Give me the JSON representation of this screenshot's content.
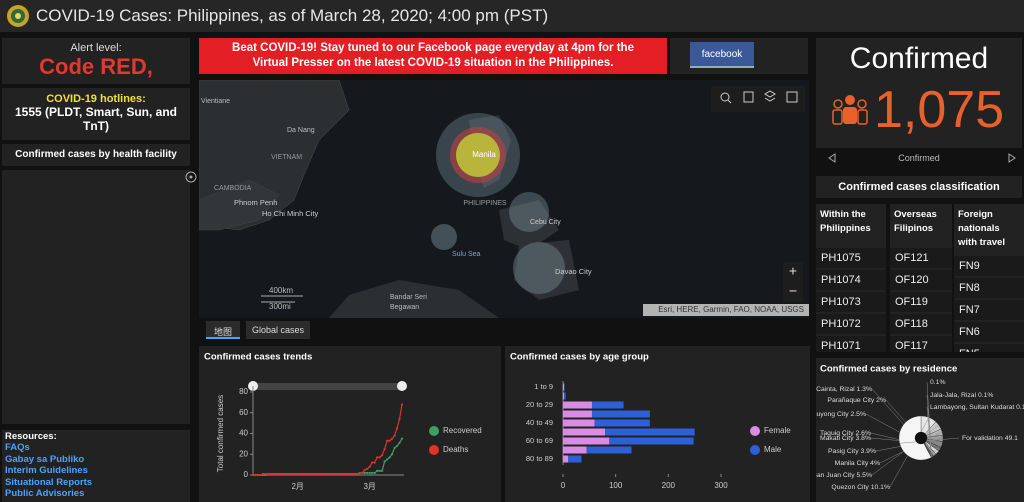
{
  "header": {
    "title": "COVID-19 Cases: Philippines, as of March 28, 2020; 4:00 pm (PST)"
  },
  "left": {
    "alert_label": "Alert level:",
    "alert_level": "Code RED,",
    "hotlines_title": "COVID-19 hotlines:",
    "hotlines": "1555 (PLDT, Smart, Sun, and TnT)",
    "facility_title": "Confirmed cases by health facility",
    "resources_title": "Resources:",
    "resources": [
      "FAQs",
      "Gabay sa Publiko",
      "Interim Guidelines",
      "Situational Reports",
      "Public Advisories"
    ]
  },
  "banner": {
    "text": "Beat COVID-19! Stay tuned to our Facebook page everyday at 4pm for the Virtual Presser on the latest COVID-19 situation in the Philippines.",
    "button": "facebook"
  },
  "map": {
    "labels": [
      "Vientiane",
      "Da Nang",
      "VIETNAM",
      "CAMBODIA",
      "Phnom Penh",
      "Ho Chi Minh City",
      "Manila",
      "PHILIPPINES",
      "Cebu City",
      "Sulu Sea",
      "Davao City",
      "Bandar Seri",
      "Begawan"
    ],
    "scale_km": "400km",
    "scale_mi": "300mi",
    "attribution": "Esri, HERE, Garmin, FAO, NOAA, USGS",
    "zoom_in": "+",
    "zoom_out": "−",
    "tabs": [
      "地图",
      "Global cases"
    ]
  },
  "confirmed": {
    "title": "Confirmed",
    "count": "1,075",
    "caption": "Confirmed"
  },
  "classification": {
    "title": "Confirmed cases classification",
    "columns": [
      {
        "heading": "Within the Philippines",
        "items": [
          "PH1075",
          "PH1074",
          "PH1073",
          "PH1072",
          "PH1071"
        ]
      },
      {
        "heading": "Overseas Filipinos",
        "items": [
          "OF121",
          "OF120",
          "OF119",
          "OF118",
          "OF117"
        ]
      },
      {
        "heading": "Foreign nationals with travel",
        "items": [
          "FN9",
          "FN8",
          "FN7",
          "FN6",
          "FN5"
        ]
      }
    ]
  },
  "chart_data": [
    {
      "type": "line",
      "title": "Confirmed cases trends",
      "y_label": "Total confirmed cases",
      "categories": [
        null,
        null,
        null,
        null,
        null,
        null,
        null,
        null,
        null,
        null,
        null,
        null,
        null,
        null,
        null,
        null,
        null,
        null,
        "2月",
        null,
        null,
        null,
        null,
        null,
        null,
        null,
        null,
        null,
        null,
        null,
        null,
        null,
        null,
        null,
        null,
        null,
        null,
        null,
        null,
        null,
        null,
        null,
        null,
        null,
        null,
        null,
        null,
        "3月",
        null,
        null,
        null,
        null,
        null,
        null,
        null,
        null,
        null,
        null,
        null,
        null,
        null
      ],
      "series": [
        {
          "name": "Recovered",
          "color": "#3f9e62",
          "values": [
            0,
            0,
            0,
            0,
            0,
            0,
            1,
            1,
            1,
            1,
            1,
            1,
            1,
            1,
            1,
            1,
            1,
            1,
            1,
            1,
            1,
            1,
            1,
            1,
            1,
            1,
            1,
            1,
            1,
            1,
            1,
            1,
            1,
            1,
            1,
            1,
            1,
            1,
            1,
            1,
            1,
            1,
            1,
            2,
            2,
            2,
            2,
            2,
            2,
            2,
            4,
            4,
            4,
            13,
            15,
            17,
            20,
            26,
            28,
            31,
            35
          ]
        },
        {
          "name": "Deaths",
          "color": "#e0332a",
          "values": [
            0,
            0,
            0,
            0,
            1,
            1,
            1,
            1,
            1,
            1,
            1,
            1,
            1,
            1,
            1,
            1,
            1,
            1,
            1,
            1,
            1,
            1,
            1,
            1,
            1,
            1,
            1,
            1,
            1,
            1,
            1,
            1,
            1,
            1,
            1,
            1,
            1,
            1,
            1,
            1,
            1,
            1,
            1,
            2,
            2,
            5,
            6,
            8,
            12,
            12,
            17,
            17,
            19,
            25,
            33,
            33,
            35,
            38,
            45,
            54,
            68
          ]
        }
      ],
      "ylim": [
        0,
        80
      ],
      "yticks": [
        0,
        20,
        40,
        60,
        80
      ]
    },
    {
      "type": "bar",
      "orientation": "horizontal",
      "stacked": true,
      "title": "Confirmed cases by age group",
      "categories": [
        "1 to 9",
        null,
        "20 to 29",
        null,
        "40 to 49",
        null,
        "60 to 69",
        null,
        "80 to 89"
      ],
      "series": [
        {
          "name": "Female",
          "color": "#d88ce3",
          "values": [
            2,
            2,
            55,
            55,
            60,
            80,
            88,
            45,
            10
          ]
        },
        {
          "name": "Male",
          "color": "#2d5fd6",
          "values": [
            1,
            3,
            60,
            110,
            105,
            170,
            160,
            85,
            25
          ]
        }
      ],
      "xlim": [
        0,
        300
      ],
      "xticks": [
        0,
        100,
        200,
        300
      ]
    },
    {
      "type": "pie",
      "title": "Confirmed cases by residence",
      "categories": [
        "Quezon City",
        "San Juan City",
        "Manila City",
        "Pasig City",
        "Makati City",
        "Taguig City",
        "Mandaluyong City",
        "Parañaque City",
        "Cainta, Rizal",
        null,
        "Jala-Jala, Rizal",
        "Lambayong, Sultan Kudarat",
        "For validation"
      ],
      "values": [
        10.1,
        5.5,
        4,
        3.9,
        3.8,
        2.6,
        2.5,
        2,
        1.3,
        0.1,
        0.1,
        0.1,
        49.1
      ],
      "value_labels": [
        "10.1%",
        "5.5%",
        "4%",
        "3.9%",
        "3.8%",
        "2.6%",
        "2.5%",
        "2%",
        "1.3%",
        "0.1%",
        "0.1%",
        "0.1%",
        "49.1"
      ],
      "colors": [
        "#e6e6e6",
        "#c9c9c9",
        "#b3b3b3",
        "#9d9d9d",
        "#878787",
        "#727272",
        "#d6d6d6",
        "#a2a2a2",
        "#5f5f5f",
        "#4d4d4d",
        "#444444",
        "#3a3a3a",
        "#f5f5f5"
      ]
    }
  ]
}
